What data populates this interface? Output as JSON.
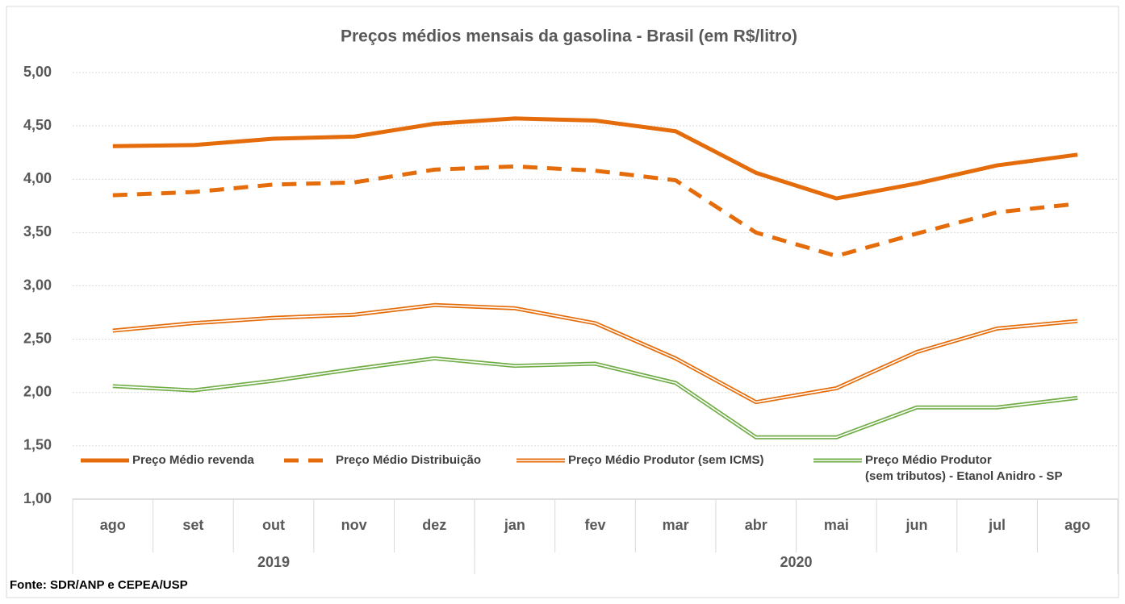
{
  "chart_data": {
    "type": "line",
    "title": "Preços médios mensais da gasolina - Brasil (em R$/litro)",
    "categories": [
      "ago",
      "set",
      "out",
      "nov",
      "dez",
      "jan",
      "fev",
      "mar",
      "abr",
      "mai",
      "jun",
      "jul",
      "ago"
    ],
    "x_groups": [
      {
        "label": "2019",
        "count": 5
      },
      {
        "label": "2020",
        "count": 8
      }
    ],
    "series": [
      {
        "name": "Preço Médio revenda",
        "color": "#e46c0a",
        "style": "solid",
        "values": [
          4.31,
          4.32,
          4.38,
          4.4,
          4.52,
          4.57,
          4.55,
          4.45,
          4.06,
          3.82,
          3.96,
          4.13,
          4.23
        ]
      },
      {
        "name": "Preço Médio Distribuição",
        "color": "#e46c0a",
        "style": "dashed",
        "values": [
          3.85,
          3.88,
          3.95,
          3.97,
          4.09,
          4.12,
          4.08,
          3.99,
          3.5,
          3.28,
          3.49,
          3.69,
          3.77
        ]
      },
      {
        "name": "Preço Médio Produtor (sem ICMS)",
        "color": "#e46c0a",
        "style": "double",
        "values": [
          2.58,
          2.65,
          2.7,
          2.73,
          2.82,
          2.79,
          2.65,
          2.32,
          1.91,
          2.04,
          2.38,
          2.6,
          2.67
        ]
      },
      {
        "name": "Preço Médio Produtor\n(sem tributos)  - Etanol Anidro - SP",
        "color": "#70ad47",
        "style": "double",
        "values": [
          2.06,
          2.02,
          2.11,
          2.22,
          2.32,
          2.25,
          2.27,
          2.09,
          1.58,
          1.58,
          1.86,
          1.86,
          1.95
        ]
      }
    ],
    "ylim": [
      1,
      5
    ],
    "yticks": [
      {
        "value": 1,
        "label": "1,00"
      },
      {
        "value": 1.5,
        "label": "1,50"
      },
      {
        "value": 2,
        "label": "2,00"
      },
      {
        "value": 2.5,
        "label": "2,50"
      },
      {
        "value": 3,
        "label": "3,00"
      },
      {
        "value": 3.5,
        "label": "3,50"
      },
      {
        "value": 4,
        "label": "4,00"
      },
      {
        "value": 4.5,
        "label": "4,50"
      },
      {
        "value": 5,
        "label": "5,00"
      }
    ],
    "grid": true,
    "source": "Fonte: SDR/ANP e CEPEA/USP"
  }
}
